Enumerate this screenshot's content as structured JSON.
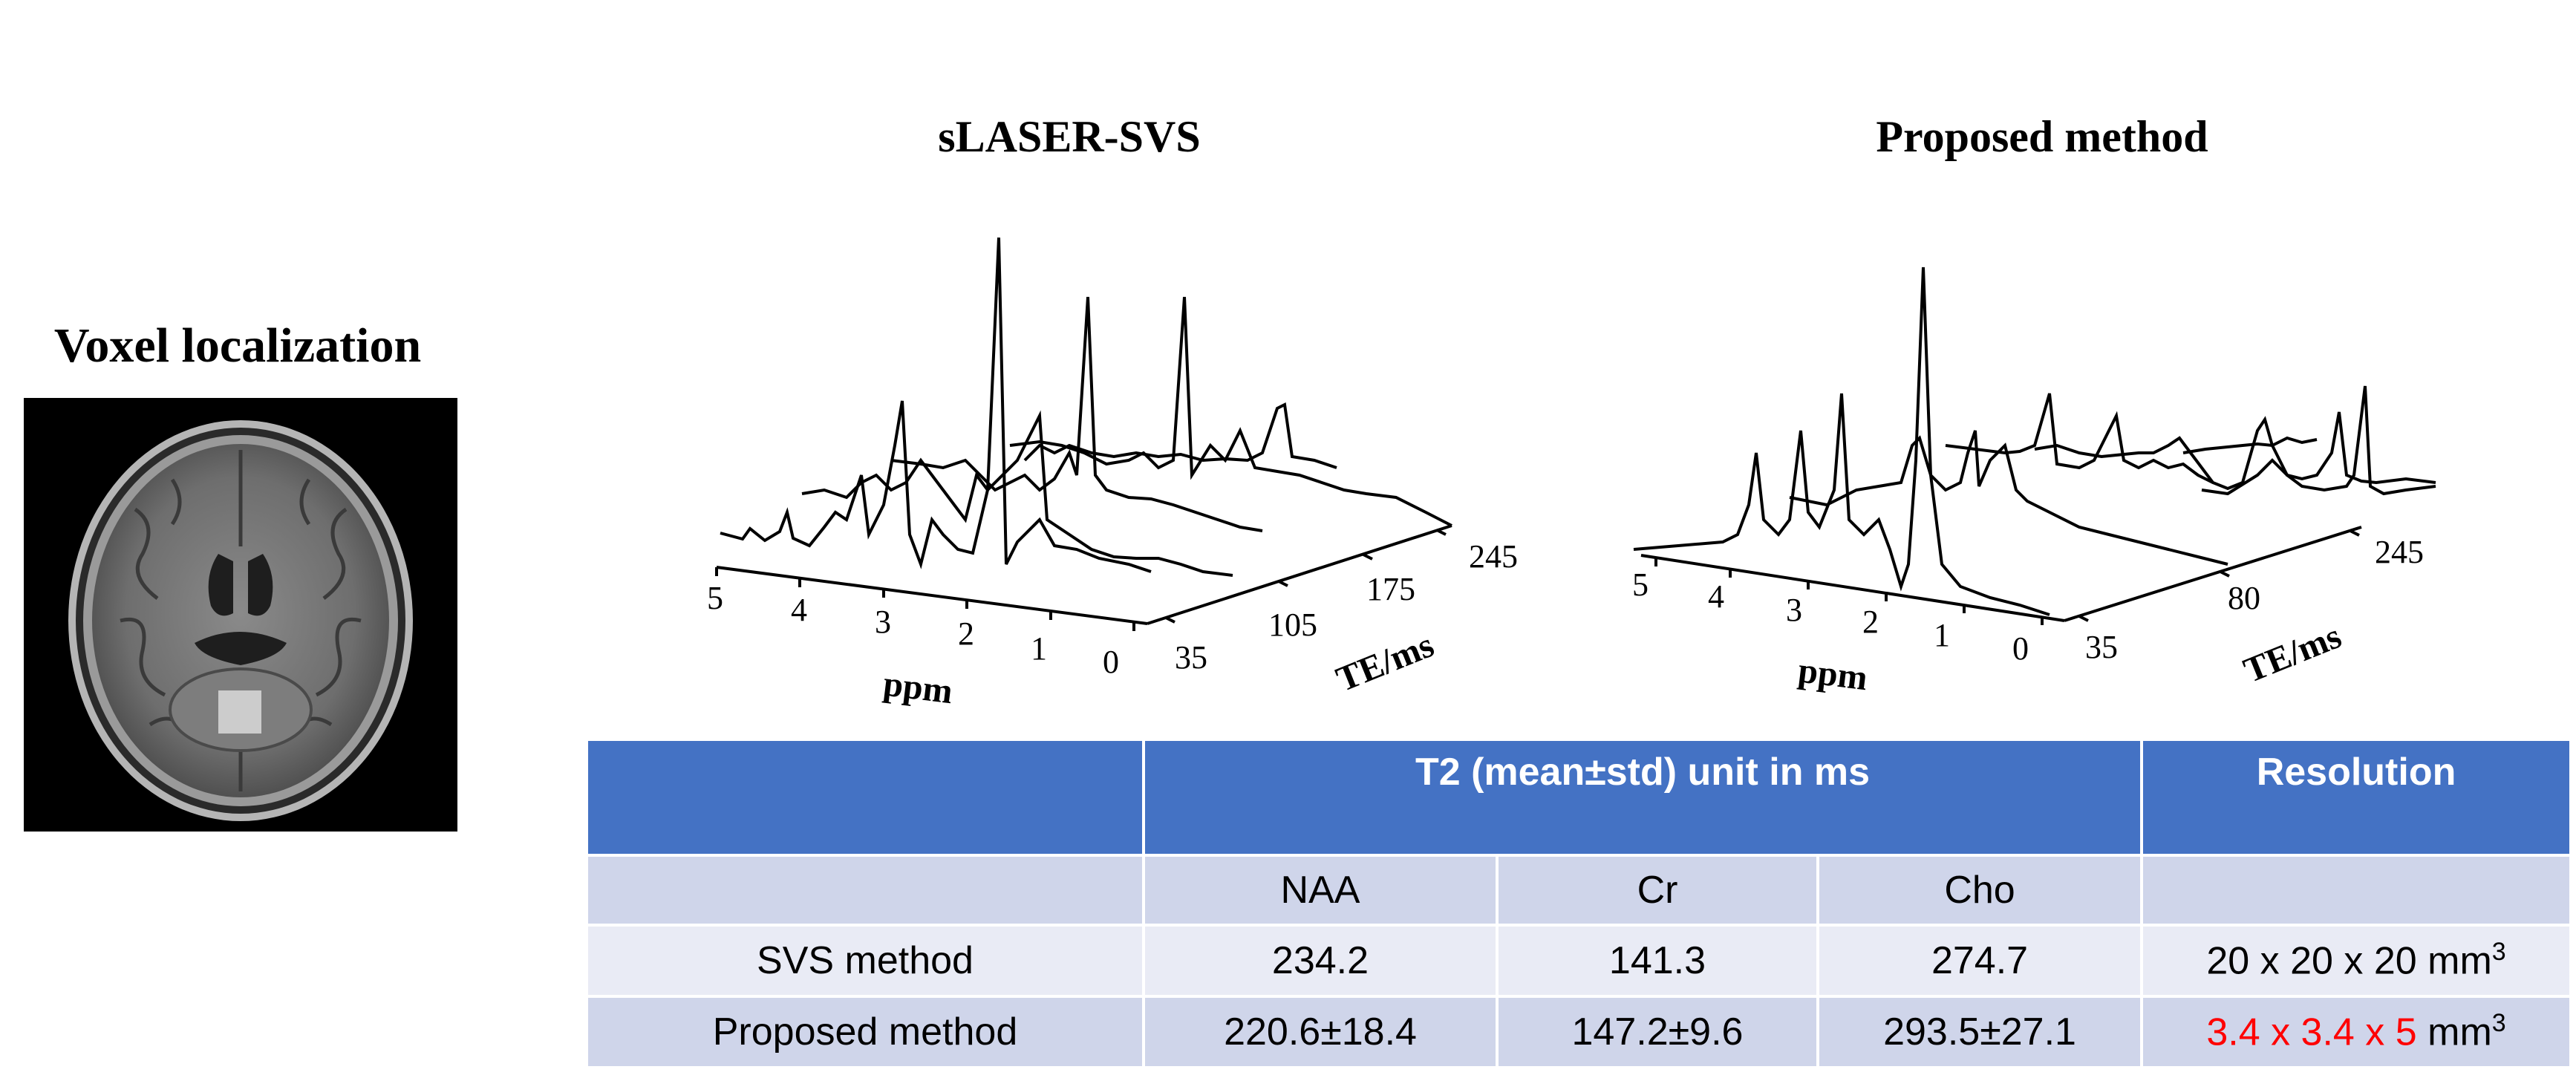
{
  "titles": {
    "voxel": "Voxel localization",
    "svs": "sLASER-SVS",
    "proposed": "Proposed method"
  },
  "plot_svs": {
    "ppm_ticks": [
      "5",
      "4",
      "3",
      "2",
      "1",
      "0"
    ],
    "ppm_label": "ppm",
    "te_ticks": [
      "35",
      "105",
      "175",
      "245"
    ],
    "te_label": "TE/ms"
  },
  "plot_proposed": {
    "ppm_ticks": [
      "5",
      "4",
      "3",
      "2",
      "1",
      "0"
    ],
    "ppm_label": "ppm",
    "te_ticks": [
      "35",
      "80",
      "245"
    ],
    "te_label": "TE/ms"
  },
  "table": {
    "header_t2": "T2 (mean±std) unit in ms",
    "header_resolution": "Resolution",
    "metabolites": [
      "NAA",
      "Cr",
      "Cho"
    ],
    "rows": [
      {
        "label": "SVS method",
        "values": [
          "234.2",
          "141.3",
          "274.7"
        ],
        "resolution_value": "20 x 20 x 20",
        "resolution_unit": "mm",
        "resolution_exp": "3"
      },
      {
        "label": "Proposed method",
        "values": [
          "220.6±18.4",
          "147.2±9.6",
          "293.5±27.1"
        ],
        "resolution_value": "3.4 x 3.4 x 5",
        "resolution_unit": "mm",
        "resolution_exp": "3"
      }
    ]
  },
  "colors": {
    "table_header": "#4472c4",
    "row_dark": "#cfd5ea",
    "row_light": "#e9ebf5",
    "highlight": "#ff0000"
  }
}
